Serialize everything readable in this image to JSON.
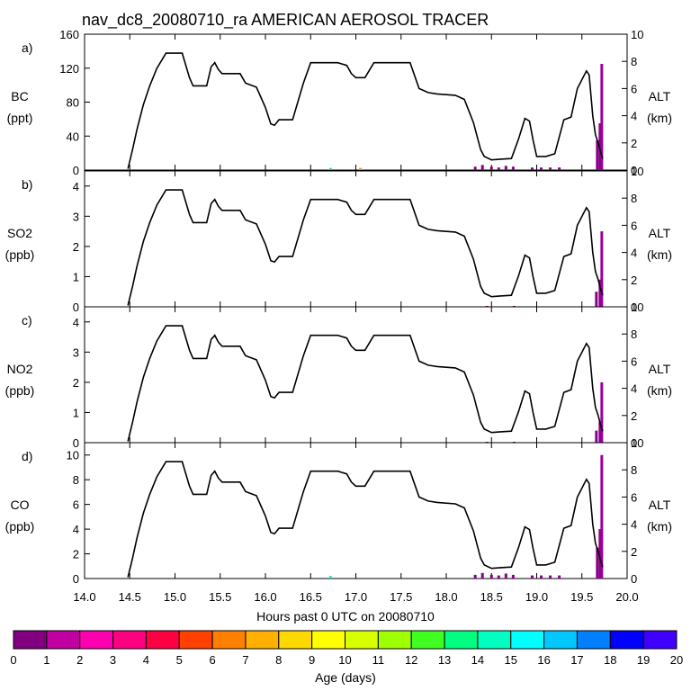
{
  "chart_data": {
    "type": "line",
    "title": "nav_dc8_20080710_ra AMERICAN AEROSOL TRACER",
    "xlabel": "Hours past 0 UTC on 20080710",
    "xlim": [
      14.0,
      20.0
    ],
    "x_ticks": [
      "14.0",
      "14.5",
      "15.0",
      "15.5",
      "16.0",
      "16.5",
      "17.0",
      "17.5",
      "18.0",
      "18.5",
      "19.0",
      "19.5",
      "20.0"
    ],
    "altitude": {
      "label": "ALT",
      "unit": "(km)",
      "ylim": [
        0,
        10
      ],
      "ticks": [
        "0",
        "2",
        "4",
        "6",
        "8",
        "10"
      ],
      "points": [
        [
          14.48,
          0.1
        ],
        [
          14.53,
          1.5
        ],
        [
          14.58,
          3.0
        ],
        [
          14.65,
          4.8
        ],
        [
          14.72,
          6.2
        ],
        [
          14.8,
          7.5
        ],
        [
          14.9,
          8.6
        ],
        [
          15.0,
          8.6
        ],
        [
          15.08,
          8.6
        ],
        [
          15.16,
          6.8
        ],
        [
          15.2,
          6.2
        ],
        [
          15.3,
          6.2
        ],
        [
          15.35,
          6.2
        ],
        [
          15.4,
          7.6
        ],
        [
          15.44,
          7.9
        ],
        [
          15.48,
          7.4
        ],
        [
          15.52,
          7.1
        ],
        [
          15.6,
          7.1
        ],
        [
          15.72,
          7.1
        ],
        [
          15.78,
          6.4
        ],
        [
          15.9,
          6.1
        ],
        [
          16.0,
          4.6
        ],
        [
          16.06,
          3.4
        ],
        [
          16.1,
          3.3
        ],
        [
          16.15,
          3.7
        ],
        [
          16.3,
          3.7
        ],
        [
          16.42,
          6.4
        ],
        [
          16.5,
          7.9
        ],
        [
          16.6,
          7.9
        ],
        [
          16.8,
          7.9
        ],
        [
          16.9,
          7.7
        ],
        [
          16.95,
          7.1
        ],
        [
          17.0,
          6.8
        ],
        [
          17.1,
          6.8
        ],
        [
          17.2,
          7.9
        ],
        [
          17.45,
          7.9
        ],
        [
          17.6,
          7.9
        ],
        [
          17.7,
          6.0
        ],
        [
          17.8,
          5.7
        ],
        [
          17.9,
          5.6
        ],
        [
          18.1,
          5.5
        ],
        [
          18.2,
          5.2
        ],
        [
          18.3,
          3.5
        ],
        [
          18.38,
          1.5
        ],
        [
          18.42,
          1.0
        ],
        [
          18.5,
          0.75
        ],
        [
          18.6,
          0.8
        ],
        [
          18.72,
          0.85
        ],
        [
          18.8,
          2.3
        ],
        [
          18.87,
          3.8
        ],
        [
          18.92,
          3.6
        ],
        [
          18.96,
          2.2
        ],
        [
          19.0,
          1.0
        ],
        [
          19.1,
          1.0
        ],
        [
          19.2,
          1.2
        ],
        [
          19.3,
          3.7
        ],
        [
          19.38,
          3.9
        ],
        [
          19.45,
          6.0
        ],
        [
          19.55,
          7.3
        ],
        [
          19.58,
          7.0
        ],
        [
          19.62,
          4.0
        ],
        [
          19.65,
          2.6
        ],
        [
          19.68,
          2.0
        ],
        [
          19.72,
          1.0
        ],
        [
          19.73,
          0.85
        ]
      ]
    },
    "panels": [
      {
        "letter": "a)",
        "species": "BC",
        "unit": "(ppt)",
        "ylim": [
          0,
          160
        ],
        "ticks": [
          "0",
          "40",
          "80",
          "120",
          "160"
        ],
        "deposits": [
          [
            16.72,
            2.5,
            "#00e5cc"
          ],
          [
            17.05,
            2.5,
            "#ff9900"
          ],
          [
            18.32,
            4,
            "#8a008a"
          ],
          [
            18.4,
            6,
            "#8a008a"
          ],
          [
            18.5,
            4,
            "#8a008a"
          ],
          [
            18.58,
            3,
            "#8a008a"
          ],
          [
            18.66,
            5,
            "#8a008a"
          ],
          [
            18.74,
            4,
            "#8a008a"
          ],
          [
            18.95,
            3,
            "#8a008a"
          ],
          [
            19.05,
            3,
            "#8a008a"
          ],
          [
            19.15,
            3,
            "#8a008a"
          ],
          [
            19.25,
            3,
            "#8a008a"
          ],
          [
            19.67,
            35,
            "#8a008a"
          ],
          [
            19.7,
            55,
            "#8a008a"
          ],
          [
            19.72,
            125,
            "#9a009a"
          ]
        ]
      },
      {
        "letter": "b)",
        "species": "SO2",
        "unit": "(ppb)",
        "ylim": [
          0,
          4.5
        ],
        "ticks": [
          "0",
          "1",
          "2",
          "3",
          "4"
        ],
        "deposits": [
          [
            18.45,
            0.03,
            "#8a008a"
          ],
          [
            18.75,
            0.03,
            "#8a008a"
          ],
          [
            19.66,
            0.5,
            "#8a008a"
          ],
          [
            19.7,
            0.9,
            "#8a008a"
          ],
          [
            19.72,
            2.5,
            "#9a009a"
          ]
        ]
      },
      {
        "letter": "c)",
        "species": "NO2",
        "unit": "(ppb)",
        "ylim": [
          0,
          4.5
        ],
        "ticks": [
          "0",
          "1",
          "2",
          "3",
          "4"
        ],
        "deposits": [
          [
            18.45,
            0.03,
            "#8a008a"
          ],
          [
            18.75,
            0.03,
            "#8a008a"
          ],
          [
            19.66,
            0.4,
            "#8a008a"
          ],
          [
            19.7,
            0.7,
            "#8a008a"
          ],
          [
            19.72,
            2.0,
            "#9a009a"
          ]
        ]
      },
      {
        "letter": "d)",
        "species": "CO",
        "unit": "(ppb)",
        "ylim": [
          0,
          11
        ],
        "ticks": [
          "0",
          "2",
          "4",
          "6",
          "8",
          "10"
        ],
        "deposits": [
          [
            16.72,
            0.2,
            "#00e5cc"
          ],
          [
            18.32,
            0.3,
            "#8a008a"
          ],
          [
            18.4,
            0.45,
            "#8a008a"
          ],
          [
            18.5,
            0.3,
            "#8a008a"
          ],
          [
            18.58,
            0.25,
            "#8a008a"
          ],
          [
            18.66,
            0.4,
            "#8a008a"
          ],
          [
            18.74,
            0.3,
            "#8a008a"
          ],
          [
            18.95,
            0.25,
            "#8a008a"
          ],
          [
            19.05,
            0.25,
            "#8a008a"
          ],
          [
            19.15,
            0.25,
            "#8a008a"
          ],
          [
            19.25,
            0.25,
            "#8a008a"
          ],
          [
            19.67,
            2.5,
            "#8a008a"
          ],
          [
            19.7,
            4.0,
            "#8a008a"
          ],
          [
            19.72,
            10,
            "#9a009a"
          ]
        ]
      }
    ],
    "colorbar": {
      "label": "Age (days)",
      "ticks": [
        "0",
        "1",
        "2",
        "3",
        "4",
        "5",
        "6",
        "7",
        "8",
        "9",
        "10",
        "11",
        "12",
        "13",
        "14",
        "15",
        "16",
        "17",
        "18",
        "19",
        "20"
      ],
      "colors": [
        "#800080",
        "#c000a0",
        "#ff00b0",
        "#ff0080",
        "#ff0040",
        "#ff4000",
        "#ff8000",
        "#ffb000",
        "#ffd800",
        "#ffff00",
        "#d8ff00",
        "#a0ff00",
        "#40ff20",
        "#00ff80",
        "#00ffc0",
        "#00ffff",
        "#00c8ff",
        "#0080ff",
        "#0000ff",
        "#4000ff"
      ]
    }
  }
}
